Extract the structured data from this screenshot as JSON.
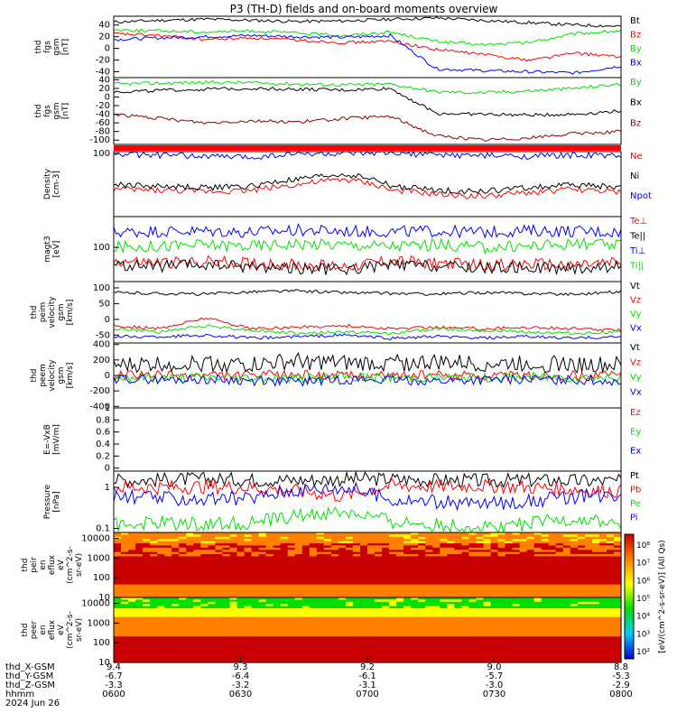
{
  "title": "P3 (TH-D) fields and on-board moments overview",
  "colors": {
    "black": "#000000",
    "red": "#ff0000",
    "green": "#00e000",
    "blue": "#0000ff",
    "darkred": "#8b0000"
  },
  "chart_data": [
    {
      "type": "line",
      "ylabel": [
        "thd",
        "fgs",
        "gsm",
        "[nT]"
      ],
      "ylim": [
        -50,
        55
      ],
      "yticks": [
        -40,
        -20,
        0,
        20,
        40
      ],
      "series": [
        {
          "name": "Bt",
          "color": "black",
          "values": [
            45,
            48,
            50,
            48,
            46,
            47,
            50,
            52,
            48,
            44,
            40,
            38
          ]
        },
        {
          "name": "Bz",
          "color": "red",
          "values": [
            25,
            22,
            15,
            18,
            14,
            10,
            12,
            -2,
            -10,
            -20,
            -8,
            -15
          ]
        },
        {
          "name": "By",
          "color": "green",
          "values": [
            32,
            30,
            28,
            30,
            26,
            22,
            28,
            12,
            6,
            10,
            25,
            30
          ]
        },
        {
          "name": "Bx",
          "color": "blue",
          "values": [
            15,
            18,
            20,
            22,
            20,
            19,
            22,
            -35,
            -38,
            -40,
            -42,
            -30
          ]
        }
      ]
    },
    {
      "type": "line",
      "ylabel": [
        "thd",
        "fgs",
        "gsm",
        "[nT]"
      ],
      "ylim": [
        -110,
        45
      ],
      "yticks": [
        40,
        20,
        0,
        -20,
        -40,
        -60,
        -80,
        -100
      ],
      "series": [
        {
          "name": "By",
          "color": "green",
          "values": [
            30,
            32,
            34,
            33,
            30,
            28,
            30,
            12,
            10,
            14,
            20,
            30
          ]
        },
        {
          "name": "Bx",
          "color": "black",
          "values": [
            12,
            15,
            18,
            20,
            18,
            16,
            20,
            -38,
            -40,
            -42,
            -40,
            -32
          ]
        },
        {
          "name": "Bz",
          "color": "darkred",
          "values": [
            -40,
            -50,
            -60,
            -55,
            -58,
            -50,
            -45,
            -90,
            -100,
            -95,
            -85,
            -80
          ]
        }
      ]
    },
    {
      "type": "line",
      "ylabel": [
        "Density",
        "[cm-3]"
      ],
      "ylim": [
        0.02,
        130
      ],
      "yticks": [
        100
      ],
      "series": [
        {
          "name": "Ne",
          "color": "red",
          "values": [
            0.8,
            0.7,
            0.6,
            0.7,
            1.5,
            3,
            0.7,
            0.4,
            0.3,
            0.5,
            0.8,
            0.5
          ]
        },
        {
          "name": "Ni",
          "color": "black",
          "values": [
            1.5,
            1.2,
            1,
            1.2,
            3,
            6,
            1.2,
            0.7,
            0.6,
            1,
            1.5,
            1
          ]
        },
        {
          "name": "Npot",
          "color": "blue",
          "values": [
            90,
            80,
            70,
            60,
            100,
            95,
            100,
            85,
            75,
            70,
            80,
            75
          ]
        }
      ]
    },
    {
      "type": "line",
      "ylabel": [
        "magt3",
        "[eV]"
      ],
      "ylim": [
        10,
        800
      ],
      "yticks": [
        100
      ],
      "series": [
        {
          "name": "Te⊥",
          "color": "red",
          "values": [
            40,
            35,
            38,
            35,
            30,
            28,
            40,
            35,
            30,
            32,
            30,
            35
          ]
        },
        {
          "name": "Te||",
          "color": "black",
          "values": [
            30,
            28,
            30,
            28,
            25,
            22,
            30,
            28,
            25,
            26,
            24,
            28
          ]
        },
        {
          "name": "Ti⊥",
          "color": "blue",
          "values": [
            280,
            300,
            300,
            280,
            320,
            300,
            290,
            300,
            280,
            310,
            300,
            280
          ]
        },
        {
          "name": "Ti||",
          "color": "green",
          "values": [
            100,
            110,
            120,
            110,
            130,
            120,
            110,
            120,
            100,
            110,
            130,
            110
          ]
        }
      ]
    },
    {
      "type": "line",
      "ylabel": [
        "thd",
        "peim",
        "velocity",
        "gsm",
        "[km/s]"
      ],
      "ylim": [
        -75,
        120
      ],
      "yticks": [
        100,
        50,
        0,
        -50
      ],
      "series": [
        {
          "name": "Vt",
          "color": "black",
          "values": [
            85,
            82,
            80,
            88,
            90,
            85,
            82,
            80,
            85,
            82,
            80,
            88
          ]
        },
        {
          "name": "Vz",
          "color": "red",
          "values": [
            -20,
            -30,
            5,
            -30,
            -25,
            -20,
            -30,
            -25,
            -30,
            -25,
            -30,
            -35
          ]
        },
        {
          "name": "Vy",
          "color": "green",
          "values": [
            -30,
            -40,
            -20,
            -35,
            -45,
            -40,
            -45,
            -30,
            -35,
            -40,
            -45,
            -40
          ]
        },
        {
          "name": "Vx",
          "color": "blue",
          "values": [
            -55,
            -55,
            -50,
            -60,
            -55,
            -50,
            -60,
            -55,
            -60,
            -55,
            -60,
            -55
          ]
        }
      ]
    },
    {
      "type": "line",
      "ylabel": [
        "thd",
        "peem",
        "velocity",
        "gsm",
        "[km/s]"
      ],
      "ylim": [
        -420,
        420
      ],
      "yticks": [
        400,
        200,
        0,
        -200,
        -400
      ],
      "series": [
        {
          "name": "Vt",
          "color": "black",
          "values": [
            120,
            150,
            160,
            140,
            180,
            150,
            160,
            170,
            150,
            160,
            140,
            130
          ]
        },
        {
          "name": "Vz",
          "color": "red",
          "values": [
            0,
            5,
            -5,
            0,
            10,
            -5,
            0,
            5,
            0,
            -5,
            0,
            5
          ]
        },
        {
          "name": "Vy",
          "color": "green",
          "values": [
            -20,
            -30,
            -25,
            -30,
            -40,
            -20,
            -30,
            -25,
            -30,
            -20,
            -25,
            -30
          ]
        },
        {
          "name": "Vx",
          "color": "blue",
          "values": [
            -40,
            -60,
            -50,
            -70,
            -80,
            -50,
            -60,
            -70,
            -60,
            -50,
            -60,
            -70
          ]
        }
      ]
    },
    {
      "type": "line",
      "ylabel": [
        "E=-VxB",
        "[mV/m]"
      ],
      "ylim": [
        -0.05,
        1.0
      ],
      "yticks": [
        1.0,
        0.8,
        0.6,
        0.4,
        0.2,
        0.0
      ],
      "series": [
        {
          "name": "Ez",
          "color": "red",
          "values": []
        },
        {
          "name": "Ey",
          "color": "green",
          "values": []
        },
        {
          "name": "Ex",
          "color": "blue",
          "values": []
        }
      ]
    },
    {
      "type": "line",
      "ylabel": [
        "Pressure",
        "[nPa]"
      ],
      "ylim": [
        0.08,
        2.5
      ],
      "yticks": [
        1.0,
        0.1
      ],
      "series": [
        {
          "name": "Pt",
          "color": "black",
          "values": [
            1.5,
            1.55,
            1.6,
            1.55,
            1.5,
            1.6,
            1.6,
            1.5,
            1.45,
            1.5,
            1.45,
            1.4
          ]
        },
        {
          "name": "Pb",
          "color": "red",
          "values": [
            1.0,
            1.0,
            1.05,
            1.0,
            0.8,
            0.6,
            1.1,
            1.05,
            1.1,
            1.0,
            0.9,
            0.8
          ]
        },
        {
          "name": "Pe",
          "color": "green",
          "values": [
            0.12,
            0.14,
            0.13,
            0.14,
            0.2,
            0.25,
            0.15,
            0.12,
            0.11,
            0.13,
            0.17,
            0.12
          ]
        },
        {
          "name": "Pi",
          "color": "blue",
          "values": [
            0.6,
            0.55,
            0.5,
            0.55,
            0.9,
            1.0,
            0.5,
            0.45,
            0.4,
            0.45,
            0.6,
            0.7
          ]
        }
      ]
    },
    {
      "type": "heatmap",
      "ylabel": [
        "thd",
        "peir",
        "en",
        "eflux",
        "eV",
        "(cm^2-s-",
        "sr-eV)"
      ],
      "ylim": [
        10,
        20000
      ],
      "yticks": [
        "10000",
        "1000",
        "100",
        "10"
      ]
    },
    {
      "type": "heatmap",
      "ylabel": [
        "thd",
        "peer",
        "en",
        "eflux",
        "eV",
        "(cm^2-s-",
        "sr-eV)"
      ],
      "ylim": [
        10,
        20000
      ],
      "yticks": [
        "10000",
        "1000",
        "100",
        "10"
      ]
    }
  ],
  "colorbar": {
    "ticks": [
      "10⁸",
      "10⁷",
      "10⁶",
      "10⁵",
      "10⁴",
      "10³",
      "10²"
    ],
    "label": "[eV/(cm^2-s-sr-eV)] (All Qs)"
  },
  "xaxis": {
    "row_labels": [
      "thd_X-GSM",
      "thd_Y-GSM",
      "thd_Z-GSM",
      "hhmm",
      "2024 Jun 26"
    ],
    "ticks": [
      {
        "x": "9.4",
        "y": "-6.7",
        "z": "-3.3",
        "t": "0600"
      },
      {
        "x": "9.3",
        "y": "-6.4",
        "z": "-3.2",
        "t": "0630"
      },
      {
        "x": "9.2",
        "y": "-6.1",
        "z": "-3.1",
        "t": "0700"
      },
      {
        "x": "9.0",
        "y": "-5.7",
        "z": "-3.0",
        "t": "0730"
      },
      {
        "x": "8.8",
        "y": "-5.3",
        "z": "-2.9",
        "t": "0800"
      }
    ]
  }
}
